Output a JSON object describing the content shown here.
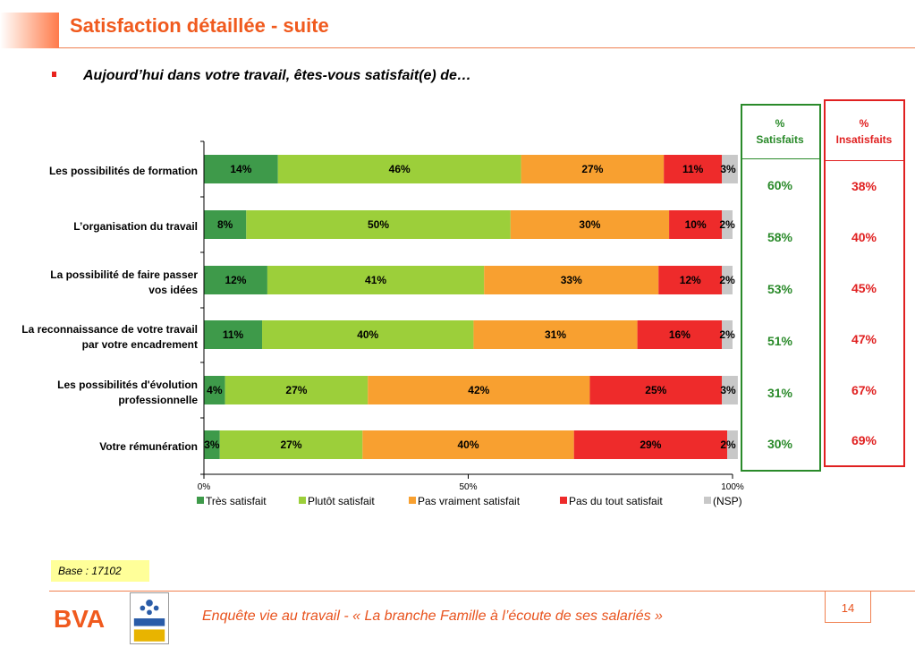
{
  "header": {
    "title": "Satisfaction détaillée - suite",
    "question": "Aujourd’hui dans votre travail, êtes-vous satisfait(e) de…"
  },
  "colors": {
    "tres_satisfait": "#3e9a4a",
    "plutot_satisfait": "#9ccf3a",
    "pas_vraiment": "#f8a030",
    "pas_du_tout": "#ee2b2b",
    "nsp": "#c8c8c8",
    "accent_orange": "#f05a1e",
    "green_box": "#2a8a2a",
    "red_box": "#e02020"
  },
  "chart_data": {
    "type": "bar",
    "orientation": "horizontal",
    "stacked": true,
    "categories_lines": [
      [
        "Les possibilités de formation"
      ],
      [
        "L’organisation du travail"
      ],
      [
        "La possibilité de faire passer",
        "vos idées"
      ],
      [
        "La reconnaissance de votre travail",
        "par votre encadrement"
      ],
      [
        "Les possibilités d'évolution",
        "professionnelle"
      ],
      [
        "Votre rémunération"
      ]
    ],
    "series": [
      {
        "name": "Très satisfait",
        "values": [
          14,
          8,
          12,
          11,
          4,
          3
        ]
      },
      {
        "name": "Plutôt satisfait",
        "values": [
          46,
          50,
          41,
          40,
          27,
          27
        ]
      },
      {
        "name": "Pas vraiment satisfait",
        "values": [
          27,
          30,
          33,
          31,
          42,
          40
        ]
      },
      {
        "name": "Pas du tout satisfait",
        "values": [
          11,
          10,
          12,
          16,
          25,
          29
        ]
      },
      {
        "name": "(NSP)",
        "values": [
          3,
          2,
          2,
          2,
          3,
          2
        ]
      }
    ],
    "x_ticks": [
      "0%",
      "50%",
      "100%"
    ],
    "xlim": [
      0,
      100
    ],
    "legend": "bottom"
  },
  "summary": {
    "satisfaits_header": [
      "%",
      "Satisfaits"
    ],
    "insatisfaits_header": [
      "%",
      "Insatisfaits"
    ],
    "satisfaits": [
      "60%",
      "58%",
      "53%",
      "51%",
      "31%",
      "30%"
    ],
    "insatisfaits": [
      "38%",
      "40%",
      "45%",
      "47%",
      "67%",
      "69%"
    ]
  },
  "footer": {
    "base": "Base : 17102",
    "text": "Enquête vie au travail - « La branche Famille à l’écoute de ses salariés »",
    "page": "14",
    "bva_logo": "BVA",
    "caf_logo": "Allocations familiales - Caisse nationale"
  }
}
